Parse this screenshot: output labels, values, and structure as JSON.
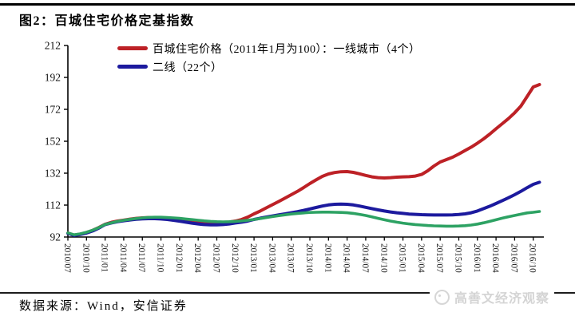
{
  "figure": {
    "title": "图2：百城住宅价格定基指数",
    "source": "数据来源：Wind，安信证券",
    "watermark": "高善文经济观察"
  },
  "chart_data": {
    "type": "line",
    "title": "图2：百城住宅价格定基指数",
    "xlabel": "",
    "ylabel": "",
    "ylim": [
      92,
      212
    ],
    "y_ticks": [
      212,
      192,
      172,
      152,
      132,
      112,
      92
    ],
    "grid": false,
    "legend_position": "top-inside",
    "x_tick_labels": [
      "2010/07",
      "2010/10",
      "2011/01",
      "2011/04",
      "2011/07",
      "2011/10",
      "2012/01",
      "2012/04",
      "2012/07",
      "2012/10",
      "2013/01",
      "2013/04",
      "2013/07",
      "2013/10",
      "2014/01",
      "2014/04",
      "2014/07",
      "2014/10",
      "2015/01",
      "2015/04",
      "2015/07",
      "2015/10",
      "2016/01",
      "2016/04",
      "2016/07",
      "2016/10"
    ],
    "months_per_tick": 3,
    "legend": [
      {
        "label": "百城住宅价格（2011年1月为100）：一线城市（4个）",
        "color": "#bd2126"
      },
      {
        "label": "二线（22个）",
        "color": "#1c1a9e"
      }
    ],
    "series": [
      {
        "name": "百城住宅价格（2011年1月为100）：一线城市（4个）",
        "color": "#bd2126",
        "values": [
          94.5,
          93.2,
          93.8,
          94.8,
          96.2,
          98.0,
          100.0,
          101.2,
          102.0,
          102.6,
          103.2,
          103.7,
          104.0,
          104.2,
          104.2,
          104.0,
          103.8,
          103.5,
          103.2,
          102.7,
          102.2,
          101.7,
          101.3,
          101.0,
          100.8,
          101.0,
          101.4,
          102.0,
          103.0,
          104.5,
          106.5,
          108.3,
          110.3,
          112.3,
          114.3,
          116.4,
          118.5,
          120.6,
          123.0,
          125.5,
          127.8,
          130.0,
          131.5,
          132.4,
          132.9,
          133.0,
          132.5,
          131.6,
          130.6,
          129.7,
          129.2,
          129.0,
          129.2,
          129.5,
          129.7,
          129.8,
          130.2,
          131.2,
          133.5,
          136.5,
          139.0,
          140.5,
          142.0,
          144.0,
          146.2,
          148.3,
          150.8,
          153.5,
          156.5,
          159.8,
          163.0,
          166.2,
          169.8,
          174.0,
          180.0,
          186.0,
          187.5
        ]
      },
      {
        "name": "二线（22个）",
        "color": "#1c1a9e",
        "values": [
          94.3,
          93.0,
          93.6,
          94.5,
          95.8,
          97.6,
          99.8,
          100.8,
          101.6,
          102.2,
          102.7,
          103.1,
          103.4,
          103.5,
          103.5,
          103.3,
          103.0,
          102.5,
          101.9,
          101.3,
          100.7,
          100.2,
          99.8,
          99.6,
          99.6,
          99.8,
          100.2,
          100.8,
          101.3,
          102.0,
          103.0,
          103.8,
          104.5,
          105.2,
          105.9,
          106.5,
          107.2,
          107.9,
          108.7,
          109.6,
          110.5,
          111.4,
          112.1,
          112.5,
          112.6,
          112.5,
          112.1,
          111.4,
          110.6,
          109.8,
          109.0,
          108.3,
          107.7,
          107.2,
          106.8,
          106.4,
          106.2,
          106.0,
          105.9,
          105.8,
          105.8,
          105.8,
          105.9,
          106.1,
          106.5,
          107.2,
          108.3,
          109.8,
          111.3,
          113.0,
          114.8,
          116.6,
          118.5,
          120.6,
          122.9,
          125.0,
          126.3
        ]
      },
      {
        "name": "unlabeled-green-series",
        "color": "#2da263",
        "values": [
          94.6,
          93.4,
          94.0,
          95.0,
          96.3,
          97.9,
          99.9,
          100.9,
          101.8,
          102.5,
          103.1,
          103.6,
          104.0,
          104.3,
          104.4,
          104.4,
          104.2,
          104.0,
          103.7,
          103.3,
          102.9,
          102.5,
          102.1,
          101.8,
          101.6,
          101.5,
          101.6,
          101.8,
          102.1,
          102.5,
          103.0,
          103.6,
          104.2,
          104.8,
          105.4,
          105.9,
          106.4,
          106.8,
          107.1,
          107.4,
          107.5,
          107.6,
          107.6,
          107.5,
          107.4,
          107.2,
          106.8,
          106.2,
          105.5,
          104.6,
          103.7,
          102.8,
          102.0,
          101.3,
          100.7,
          100.2,
          99.8,
          99.5,
          99.2,
          99.0,
          98.9,
          98.8,
          98.8,
          98.9,
          99.1,
          99.5,
          100.1,
          100.9,
          101.8,
          102.8,
          103.8,
          104.7,
          105.5,
          106.3,
          107.1,
          107.5,
          108.0
        ]
      }
    ]
  }
}
